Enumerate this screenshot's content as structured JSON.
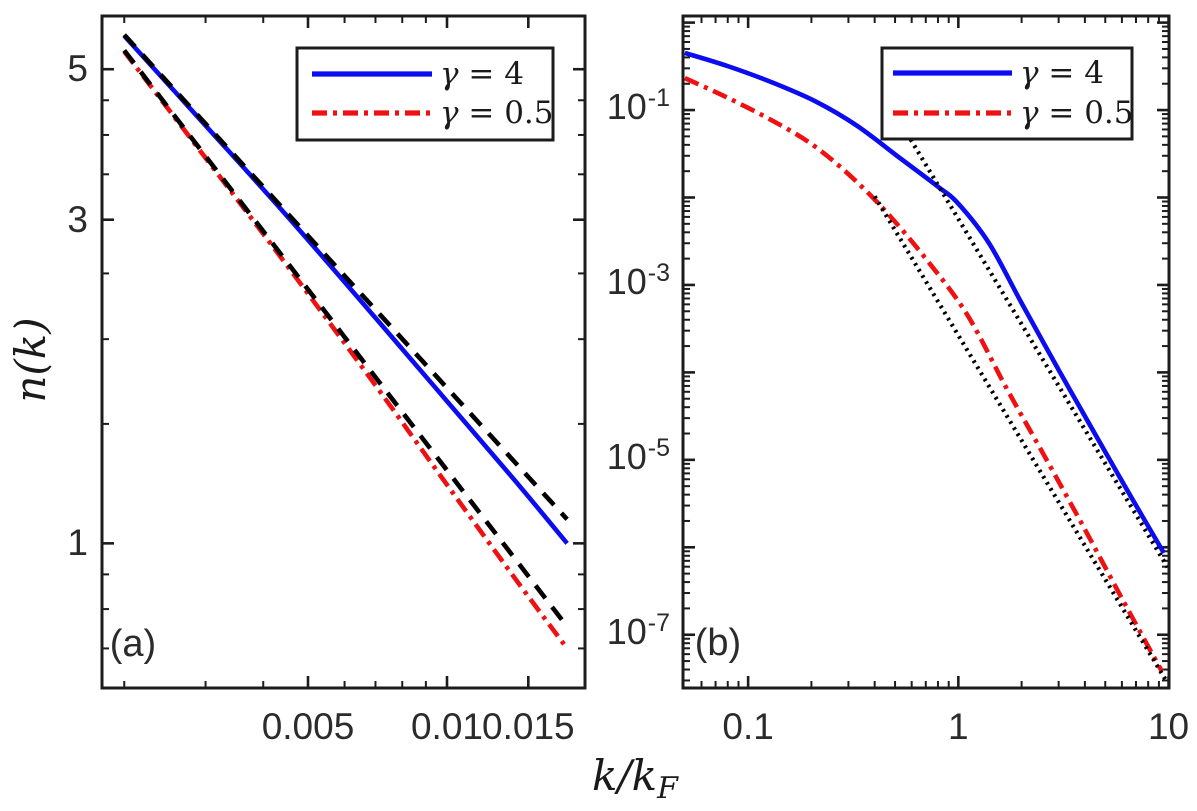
{
  "labels": {
    "ylabel": "n(k)",
    "xlabel_main": "k/k",
    "xlabel_sub": "F"
  },
  "colors": {
    "background": "#ffffff",
    "axis": "#1c1c1c",
    "tick_label": "#2b2b2b",
    "blue": "#0b0cf0",
    "red": "#ef1111",
    "black": "#000000"
  },
  "chart_data": [
    {
      "id": "a",
      "type": "line",
      "panel_label": "(a)",
      "title": "",
      "x_axis": {
        "scale": "log",
        "min": 0.00179,
        "max": 0.0199,
        "major_ticks": [
          0.005,
          0.01,
          0.015
        ],
        "major_tick_labels": [
          "0.005",
          "0.01",
          "0.015"
        ],
        "minor_ticks": [
          0.002,
          0.003,
          0.004,
          0.006,
          0.007,
          0.008,
          0.009
        ]
      },
      "y_axis": {
        "scale": "log",
        "min": 0.612,
        "max": 5.99,
        "major_ticks": [
          5,
          3,
          1
        ],
        "major_tick_labels": [
          "5",
          "3",
          "1"
        ],
        "minor_ticks": [
          4.5,
          4,
          3.5,
          2.5,
          2,
          1.5,
          0.9,
          0.8,
          0.7
        ]
      },
      "legend": {
        "entries": [
          {
            "symbol": "γ",
            "rest": " = 4",
            "style": "solid",
            "color_key": "blue"
          },
          {
            "symbol": "γ",
            "rest": " = 0.5",
            "style": "dashdot",
            "color_key": "red"
          }
        ]
      },
      "series": [
        {
          "name": "n(k) gamma=4",
          "style": "solid",
          "color_key": "blue",
          "points": [
            [
              0.002,
              5.6
            ],
            [
              0.003,
              4.13
            ],
            [
              0.0045,
              3.04
            ],
            [
              0.007,
              2.15
            ],
            [
              0.01,
              1.62
            ],
            [
              0.014,
              1.24
            ],
            [
              0.0182,
              1.0
            ]
          ]
        },
        {
          "name": "n(k) gamma=0.5",
          "style": "dashdot",
          "color_key": "red",
          "points": [
            [
              0.002,
              5.31
            ],
            [
              0.003,
              3.7
            ],
            [
              0.0045,
              2.57
            ],
            [
              0.007,
              1.71
            ],
            [
              0.01,
              1.22
            ],
            [
              0.014,
              0.89
            ],
            [
              0.0182,
              0.7
            ]
          ]
        },
        {
          "name": "small-k asymptote gamma=4",
          "style": "dashed",
          "color_key": "black",
          "points": [
            [
              0.002,
              5.62
            ],
            [
              0.0182,
              1.085
            ]
          ]
        },
        {
          "name": "small-k asymptote gamma=0.5",
          "style": "dashed",
          "color_key": "black",
          "points": [
            [
              0.002,
              5.33
            ],
            [
              0.0182,
              0.754
            ]
          ]
        }
      ]
    },
    {
      "id": "b",
      "type": "line",
      "panel_label": "(b)",
      "title": "",
      "x_axis": {
        "scale": "log",
        "min": 0.049,
        "max": 10.05,
        "major_ticks": [
          0.1,
          1,
          10
        ],
        "major_tick_labels": [
          "0.1",
          "1",
          "10"
        ],
        "minor_ticks": [
          0.06,
          0.07,
          0.08,
          0.09,
          0.2,
          0.3,
          0.4,
          0.5,
          0.6,
          0.7,
          0.8,
          0.9,
          2,
          3,
          4,
          5,
          6,
          7,
          8,
          9
        ]
      },
      "y_axis": {
        "scale": "log",
        "min": 2.46e-08,
        "max": 1.19,
        "major_ticks": [
          0.1,
          0.001,
          1e-05,
          1e-07
        ],
        "major_tick_labels_exp": [
          [
            "10",
            "-1"
          ],
          [
            "10",
            "-3"
          ],
          [
            "10",
            "-5"
          ],
          [
            "10",
            "-7"
          ]
        ],
        "unlabeled_decade_ticks": [
          1,
          0.01,
          0.0001,
          1e-06
        ],
        "minor_ticks": "auto-log"
      },
      "legend": {
        "entries": [
          {
            "symbol": "γ",
            "rest": " = 4",
            "style": "solid",
            "color_key": "blue"
          },
          {
            "symbol": "γ",
            "rest": " = 0.5",
            "style": "dashdot",
            "color_key": "red"
          }
        ]
      },
      "series": [
        {
          "name": "n(k) gamma=4",
          "style": "solid",
          "color_key": "blue",
          "points": [
            [
              0.05,
              0.45
            ],
            [
              0.08,
              0.318
            ],
            [
              0.13,
              0.207
            ],
            [
              0.21,
              0.125
            ],
            [
              0.33,
              0.066
            ],
            [
              0.53,
              0.028
            ],
            [
              0.8,
              0.0133
            ],
            [
              1.0,
              0.0085
            ],
            [
              1.4,
              0.003
            ],
            [
              2.0,
              0.00062
            ],
            [
              3.0,
              0.000107
            ],
            [
              4.5,
              1.92e-05
            ],
            [
              6.5,
              4.1e-06
            ],
            [
              9.5,
              8.6e-07
            ]
          ]
        },
        {
          "name": "n(k) gamma=0.5",
          "style": "dashdot",
          "color_key": "red",
          "points": [
            [
              0.05,
              0.232
            ],
            [
              0.08,
              0.138
            ],
            [
              0.13,
              0.076
            ],
            [
              0.2,
              0.041
            ],
            [
              0.3,
              0.0185
            ],
            [
              0.45,
              0.007
            ],
            [
              0.7,
              0.002
            ],
            [
              1.1,
              0.00046
            ],
            [
              1.7,
              6.5e-05
            ],
            [
              2.6,
              1.05e-05
            ],
            [
              4.0,
              1.6e-06
            ],
            [
              6.0,
              2.6e-07
            ],
            [
              9.3,
              3.8e-08
            ]
          ]
        },
        {
          "name": "k^-4 tail asymptote gamma=4",
          "style": "dotted",
          "color_key": "black",
          "points": [
            [
              0.57,
              0.054
            ],
            [
              9.9,
              5.9e-07
            ]
          ]
        },
        {
          "name": "k^-4 tail asymptote gamma=0.5",
          "style": "dotted",
          "color_key": "black",
          "points": [
            [
              0.4,
              0.0103
            ],
            [
              9.9,
              2.8e-08
            ]
          ]
        }
      ]
    }
  ]
}
